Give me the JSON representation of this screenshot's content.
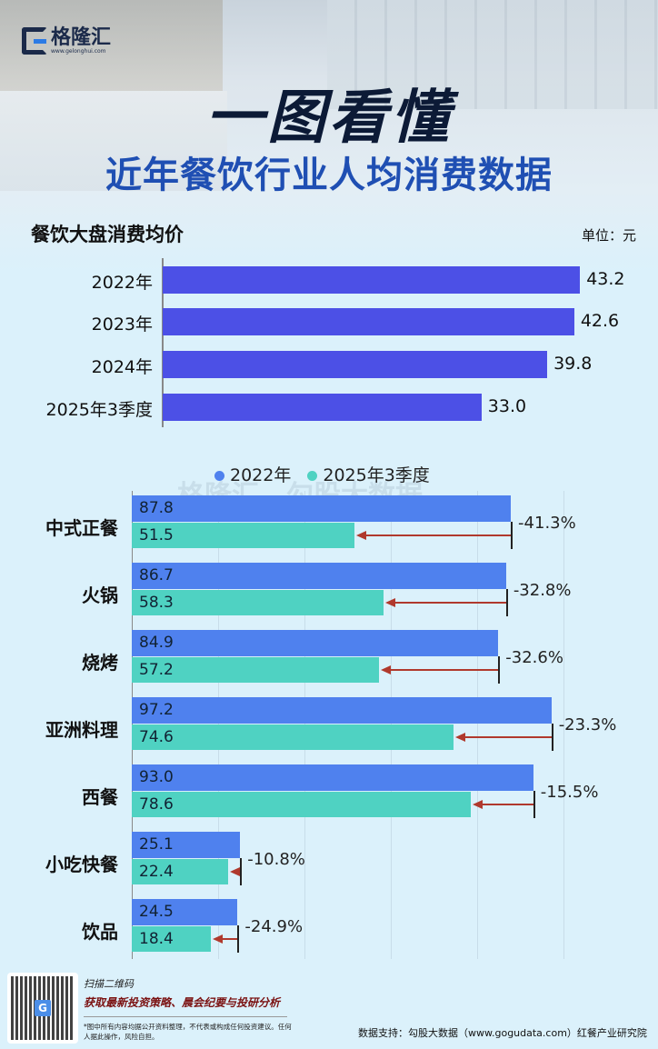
{
  "brand": {
    "name": "格隆汇",
    "url": "www.gelonghui.com"
  },
  "header": {
    "title": "一图看懂",
    "subtitle": "近年餐饮行业人均消费数据"
  },
  "watermark": {
    "left": "格隆汇",
    "right": "勾股大数据",
    "url": "www.gogudata.com"
  },
  "colors": {
    "bar1": "#4c50e6",
    "series2022": "#4f81ee",
    "series2025": "#4fd2c2",
    "arrow": "#b0392d"
  },
  "chart_data": [
    {
      "type": "bar",
      "orientation": "horizontal",
      "title": "餐饮大盘消费均价",
      "unit": "单位：元",
      "categories": [
        "2022年",
        "2023年",
        "2024年",
        "2025年3季度"
      ],
      "values": [
        43.2,
        42.6,
        39.8,
        33.0
      ],
      "value_labels": [
        "43.2",
        "42.6",
        "39.8",
        "33.0"
      ],
      "grid": false
    },
    {
      "type": "bar",
      "orientation": "horizontal",
      "legend_position": "top",
      "grid": true,
      "xlim": [
        0,
        100
      ],
      "categories": [
        "中式正餐",
        "火锅",
        "烧烤",
        "亚洲料理",
        "西餐",
        "小吃快餐",
        "饮品"
      ],
      "series": [
        {
          "name": "2022年",
          "values": [
            87.8,
            86.7,
            84.9,
            97.2,
            93.0,
            25.1,
            24.5
          ],
          "labels": [
            "87.8",
            "86.7",
            "84.9",
            "97.2",
            "93.0",
            "25.1",
            "24.5"
          ]
        },
        {
          "name": "2025年3季度",
          "values": [
            51.5,
            58.3,
            57.2,
            74.6,
            78.6,
            22.4,
            18.4
          ],
          "labels": [
            "51.5",
            "58.3",
            "57.2",
            "74.6",
            "78.6",
            "22.4",
            "18.4"
          ]
        }
      ],
      "changes": [
        "-41.3%",
        "-32.8%",
        "-32.6%",
        "-23.3%",
        "-15.5%",
        "-10.8%",
        "-24.9%"
      ]
    }
  ],
  "footer": {
    "scan": "扫描二维码",
    "promo": "获取最新投资策略、晨会纪要与投研分析",
    "disclaimer": "*图中所有内容均据公开资料整理，不代表或构成任何投资建议。任何人据此操作，风险自担。",
    "source": "数据支持：勾股大数据（www.gogudata.com）红餐产业研究院"
  }
}
